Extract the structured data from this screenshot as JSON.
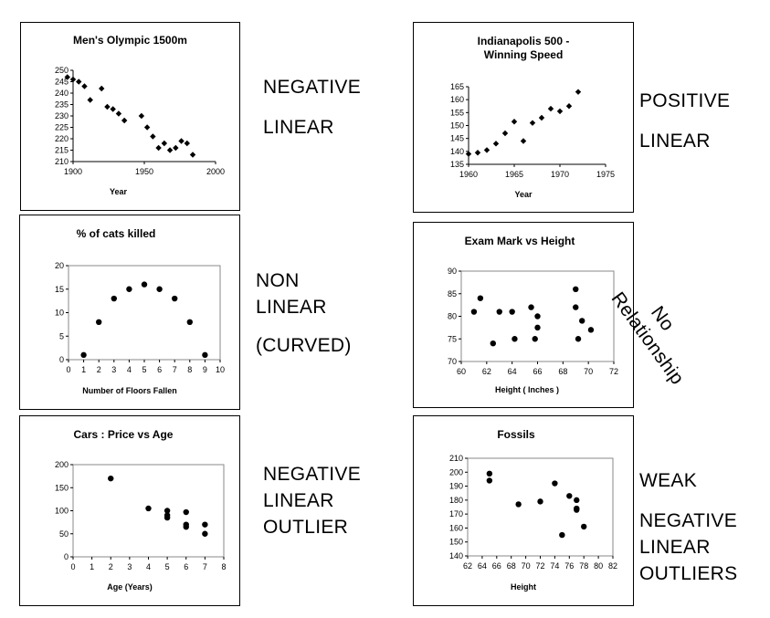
{
  "charts": [
    {
      "id": "olympic",
      "type": "scatter",
      "title": "Men's Olympic 1500m",
      "xlabel": "Year",
      "ylabel": "",
      "xlim": [
        1900,
        2000
      ],
      "ylim": [
        210,
        250
      ],
      "xticks": [
        1900,
        1950,
        2000
      ],
      "yticks": [
        210,
        215,
        220,
        225,
        230,
        235,
        240,
        245,
        250
      ],
      "plot_border": false,
      "points": [
        [
          1896,
          247
        ],
        [
          1900,
          246
        ],
        [
          1904,
          245
        ],
        [
          1908,
          243
        ],
        [
          1912,
          237
        ],
        [
          1920,
          242
        ],
        [
          1924,
          234
        ],
        [
          1928,
          233
        ],
        [
          1932,
          231
        ],
        [
          1936,
          228
        ],
        [
          1948,
          230
        ],
        [
          1952,
          225
        ],
        [
          1956,
          221
        ],
        [
          1960,
          216
        ],
        [
          1964,
          218
        ],
        [
          1968,
          215
        ],
        [
          1972,
          216
        ],
        [
          1976,
          219
        ],
        [
          1980,
          218
        ],
        [
          1984,
          213
        ]
      ]
    },
    {
      "id": "indy",
      "type": "scatter",
      "title": "Indianapolis 500 -\nWinning Speed",
      "xlabel": "Year",
      "ylabel": "",
      "xlim": [
        1960,
        1975
      ],
      "ylim": [
        135,
        165
      ],
      "xticks": [
        1960,
        1965,
        1970,
        1975
      ],
      "yticks": [
        135,
        140,
        145,
        150,
        155,
        160,
        165
      ],
      "plot_border": false,
      "points": [
        [
          1960,
          139
        ],
        [
          1961,
          139.5
        ],
        [
          1962,
          140.5
        ],
        [
          1963,
          143
        ],
        [
          1964,
          147
        ],
        [
          1965,
          151.5
        ],
        [
          1966,
          144
        ],
        [
          1967,
          151
        ],
        [
          1968,
          153
        ],
        [
          1969,
          156.5
        ],
        [
          1970,
          155.5
        ],
        [
          1971,
          157.5
        ],
        [
          1972,
          163
        ]
      ]
    },
    {
      "id": "cats",
      "type": "scatter",
      "title": "% of cats killed",
      "xlabel": "Number of Floors Fallen",
      "ylabel": "",
      "xlim": [
        0,
        10
      ],
      "ylim": [
        0,
        20
      ],
      "xticks": [
        0,
        1,
        2,
        3,
        4,
        5,
        6,
        7,
        8,
        9,
        10
      ],
      "yticks": [
        0,
        5,
        10,
        15,
        20
      ],
      "plot_border": true,
      "points": [
        [
          1,
          1
        ],
        [
          2,
          8
        ],
        [
          3,
          13
        ],
        [
          4,
          15
        ],
        [
          5,
          16
        ],
        [
          6,
          15
        ],
        [
          7,
          13
        ],
        [
          8,
          8
        ],
        [
          9,
          1
        ]
      ]
    },
    {
      "id": "exam",
      "type": "scatter",
      "title": "Exam Mark vs Height",
      "xlabel": "Height ( Inches )",
      "ylabel": "",
      "xlim": [
        60,
        72
      ],
      "ylim": [
        70,
        90
      ],
      "xticks": [
        60,
        62,
        64,
        66,
        68,
        70,
        72
      ],
      "yticks": [
        70,
        75,
        80,
        85,
        90
      ],
      "plot_border": true,
      "points": [
        [
          61,
          81
        ],
        [
          61.5,
          84
        ],
        [
          62.5,
          74
        ],
        [
          63,
          81
        ],
        [
          64,
          81
        ],
        [
          64.2,
          75
        ],
        [
          65.5,
          82
        ],
        [
          65.8,
          75
        ],
        [
          66,
          80
        ],
        [
          66,
          77.5
        ],
        [
          69,
          86
        ],
        [
          69,
          82
        ],
        [
          69.2,
          75
        ],
        [
          69.5,
          79
        ],
        [
          70.2,
          77
        ]
      ]
    },
    {
      "id": "cars",
      "type": "scatter",
      "title": "Cars : Price vs Age",
      "xlabel": "Age (Years)",
      "ylabel": "",
      "xlim": [
        0,
        8
      ],
      "ylim": [
        0,
        200
      ],
      "xticks": [
        0,
        1,
        2,
        3,
        4,
        5,
        6,
        7,
        8
      ],
      "yticks": [
        0,
        50,
        100,
        150,
        200
      ],
      "plot_border": true,
      "points": [
        [
          2,
          170
        ],
        [
          4,
          105
        ],
        [
          5,
          100
        ],
        [
          5,
          90
        ],
        [
          5,
          85
        ],
        [
          6,
          97
        ],
        [
          6,
          70
        ],
        [
          6,
          65
        ],
        [
          7,
          70
        ],
        [
          7,
          50
        ]
      ]
    },
    {
      "id": "fossils",
      "type": "scatter",
      "title": "Fossils",
      "xlabel": "Height",
      "ylabel": "",
      "xlim": [
        62,
        82
      ],
      "ylim": [
        140,
        210
      ],
      "xticks": [
        62,
        64,
        66,
        68,
        70,
        72,
        74,
        76,
        78,
        80,
        82
      ],
      "yticks": [
        140,
        150,
        160,
        170,
        180,
        190,
        200,
        210
      ],
      "plot_border": true,
      "points": [
        [
          65,
          199
        ],
        [
          65,
          194
        ],
        [
          69,
          177
        ],
        [
          72,
          179
        ],
        [
          74,
          192
        ],
        [
          75,
          155
        ],
        [
          76,
          183
        ],
        [
          77,
          180
        ],
        [
          77,
          174
        ],
        [
          77,
          173
        ],
        [
          78,
          161
        ]
      ]
    }
  ],
  "descriptions": {
    "olympic": [
      "NEGATIVE",
      "LINEAR"
    ],
    "indy": [
      "POSITIVE",
      "LINEAR"
    ],
    "cats": [
      "NON",
      "LINEAR",
      "(CURVED)"
    ],
    "exam": [
      "No",
      "Relationship"
    ],
    "cars": [
      "NEGATIVE",
      "LINEAR",
      "OUTLIER"
    ],
    "fossils": [
      "WEAK",
      "NEGATIVE",
      "LINEAR",
      "OUTLIERS"
    ]
  }
}
